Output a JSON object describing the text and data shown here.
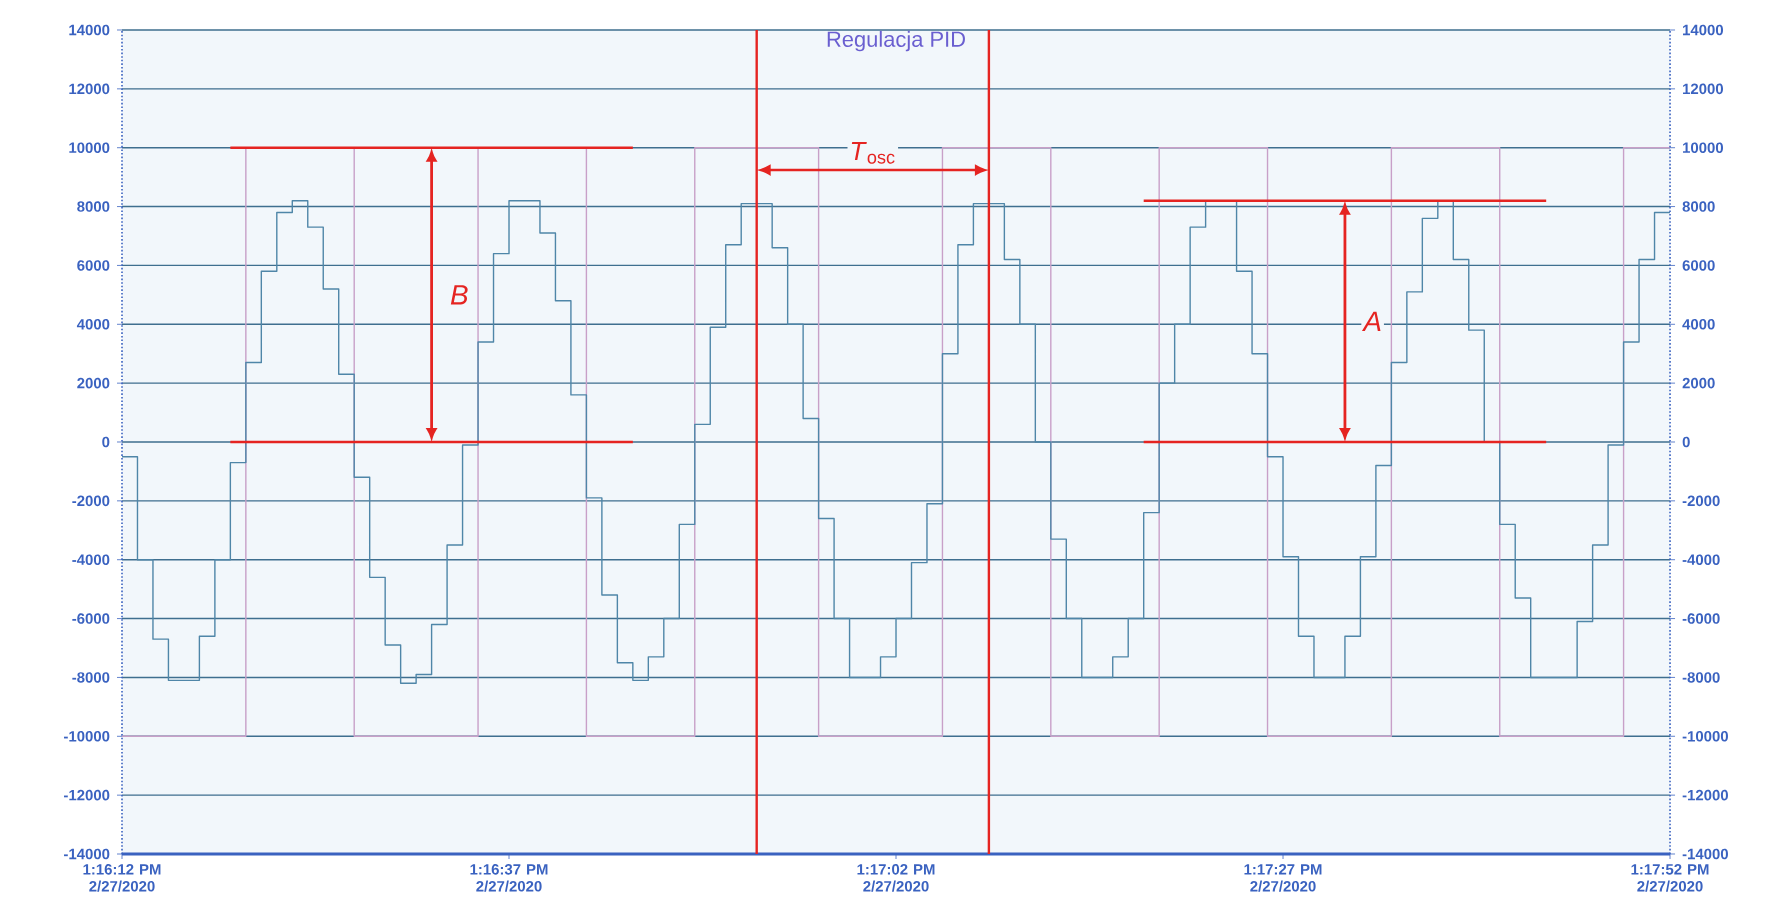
{
  "chart_data": {
    "type": "step",
    "title": "Regulacja PID",
    "xlim": [
      "2020-02-27T13:16:12",
      "2020-02-27T13:17:52"
    ],
    "xticks": [
      {
        "value": "2020-02-27T13:16:12",
        "label": "1:16:12 PM 2/27/2020"
      },
      {
        "value": "2020-02-27T13:16:37",
        "label": "1:16:37 PM 2/27/2020"
      },
      {
        "value": "2020-02-27T13:17:02",
        "label": "1:17:02 PM 2/27/2020"
      },
      {
        "value": "2020-02-27T13:17:27",
        "label": "1:17:27 PM 2/27/2020"
      },
      {
        "value": "2020-02-27T13:17:52",
        "label": "1:17:52 PM 2/27/2020"
      }
    ],
    "ylim": [
      -14000,
      14000
    ],
    "yticks": [
      -14000,
      -12000,
      -10000,
      -8000,
      -6000,
      -4000,
      -2000,
      0,
      2000,
      4000,
      6000,
      8000,
      10000,
      12000,
      14000
    ],
    "y2lim": [
      -14000,
      14000
    ],
    "y2ticks": [
      -14000,
      -12000,
      -10000,
      -8000,
      -6000,
      -4000,
      -2000,
      0,
      2000,
      4000,
      6000,
      8000,
      10000,
      12000,
      14000
    ],
    "grid": "y",
    "series": [
      {
        "color": "#c8a0c8",
        "x": [
          "2020-02-27T13:16:12",
          "2020-02-27T13:16:20",
          "2020-02-27T13:16:27",
          "2020-02-27T13:16:35",
          "2020-02-27T13:16:42",
          "2020-02-27T13:16:49",
          "2020-02-27T13:16:57",
          "2020-02-27T13:17:05",
          "2020-02-27T13:17:12",
          "2020-02-27T13:17:19",
          "2020-02-27T13:17:26",
          "2020-02-27T13:17:34",
          "2020-02-27T13:17:41",
          "2020-02-27T13:17:49",
          "2020-02-27T13:17:52"
        ],
        "values": [
          -10000,
          10000,
          -10000,
          10000,
          -10000,
          10000,
          -10000,
          10000,
          -10000,
          10000,
          -10000,
          10000,
          -10000,
          10000,
          10000
        ]
      },
      {
        "color": "#4f86a8",
        "x": [
          "2020-02-27T13:16:12",
          "2020-02-27T13:16:13",
          "2020-02-27T13:16:14",
          "2020-02-27T13:16:15",
          "2020-02-27T13:16:16",
          "2020-02-27T13:16:17",
          "2020-02-27T13:16:18",
          "2020-02-27T13:16:19",
          "2020-02-27T13:16:20",
          "2020-02-27T13:16:21",
          "2020-02-27T13:16:22",
          "2020-02-27T13:16:23",
          "2020-02-27T13:16:24",
          "2020-02-27T13:16:25",
          "2020-02-27T13:16:26",
          "2020-02-27T13:16:27",
          "2020-02-27T13:16:28",
          "2020-02-27T13:16:29",
          "2020-02-27T13:16:30",
          "2020-02-27T13:16:31",
          "2020-02-27T13:16:32",
          "2020-02-27T13:16:33",
          "2020-02-27T13:16:34",
          "2020-02-27T13:16:35",
          "2020-02-27T13:16:36",
          "2020-02-27T13:16:37",
          "2020-02-27T13:16:38",
          "2020-02-27T13:16:39",
          "2020-02-27T13:16:40",
          "2020-02-27T13:16:41",
          "2020-02-27T13:16:42",
          "2020-02-27T13:16:43",
          "2020-02-27T13:16:44",
          "2020-02-27T13:16:45",
          "2020-02-27T13:16:46",
          "2020-02-27T13:16:47",
          "2020-02-27T13:16:48",
          "2020-02-27T13:16:49",
          "2020-02-27T13:16:50",
          "2020-02-27T13:16:51",
          "2020-02-27T13:16:52",
          "2020-02-27T13:16:53",
          "2020-02-27T13:16:54",
          "2020-02-27T13:16:55",
          "2020-02-27T13:16:56",
          "2020-02-27T13:16:57",
          "2020-02-27T13:16:58",
          "2020-02-27T13:16:59",
          "2020-02-27T13:17:00",
          "2020-02-27T13:17:01",
          "2020-02-27T13:17:02",
          "2020-02-27T13:17:03",
          "2020-02-27T13:17:04",
          "2020-02-27T13:17:05",
          "2020-02-27T13:17:06",
          "2020-02-27T13:17:07",
          "2020-02-27T13:17:08",
          "2020-02-27T13:17:09",
          "2020-02-27T13:17:10",
          "2020-02-27T13:17:11",
          "2020-02-27T13:17:12",
          "2020-02-27T13:17:13",
          "2020-02-27T13:17:14",
          "2020-02-27T13:17:15",
          "2020-02-27T13:17:16",
          "2020-02-27T13:17:17",
          "2020-02-27T13:17:18",
          "2020-02-27T13:17:19",
          "2020-02-27T13:17:20",
          "2020-02-27T13:17:21",
          "2020-02-27T13:17:22",
          "2020-02-27T13:17:23",
          "2020-02-27T13:17:24",
          "2020-02-27T13:17:25",
          "2020-02-27T13:17:26",
          "2020-02-27T13:17:27",
          "2020-02-27T13:17:28",
          "2020-02-27T13:17:29",
          "2020-02-27T13:17:30",
          "2020-02-27T13:17:31",
          "2020-02-27T13:17:32",
          "2020-02-27T13:17:33",
          "2020-02-27T13:17:34",
          "2020-02-27T13:17:35",
          "2020-02-27T13:17:36",
          "2020-02-27T13:17:37",
          "2020-02-27T13:17:38",
          "2020-02-27T13:17:39",
          "2020-02-27T13:17:40",
          "2020-02-27T13:17:41",
          "2020-02-27T13:17:42",
          "2020-02-27T13:17:43",
          "2020-02-27T13:17:44",
          "2020-02-27T13:17:45",
          "2020-02-27T13:17:46",
          "2020-02-27T13:17:47",
          "2020-02-27T13:17:48",
          "2020-02-27T13:17:49",
          "2020-02-27T13:17:50",
          "2020-02-27T13:17:51",
          "2020-02-27T13:17:52"
        ],
        "values": [
          -500,
          -4000,
          -6700,
          -8100,
          -8100,
          -6600,
          -4000,
          -700,
          2700,
          5800,
          7800,
          8200,
          7300,
          5200,
          2300,
          -1200,
          -4600,
          -6900,
          -8200,
          -7900,
          -6200,
          -3500,
          -100,
          3400,
          6400,
          8200,
          8200,
          7100,
          4800,
          1600,
          -1900,
          -5200,
          -7500,
          -8100,
          -7300,
          -6000,
          -2800,
          600,
          3900,
          6700,
          8100,
          8100,
          6600,
          4000,
          800,
          -2600,
          -6000,
          -8000,
          -8000,
          -7300,
          -6000,
          -4100,
          -2100,
          3000,
          6700,
          8100,
          8100,
          6200,
          4000,
          0,
          -3300,
          -6000,
          -8000,
          -8000,
          -7300,
          -6000,
          -2400,
          2000,
          4000,
          7300,
          8200,
          8200,
          5800,
          3000,
          -500,
          -3900,
          -6600,
          -8000,
          -8000,
          -6600,
          -3900,
          -800,
          2700,
          5100,
          7600,
          8200,
          6200,
          3800,
          0,
          -2800,
          -5300,
          -8000,
          -8000,
          -8000,
          -6100,
          -3500,
          -100,
          3400,
          6200,
          7800,
          7800
        ]
      },
      {
        "type": "line",
        "color": "#e52421",
        "x": [
          "2020-02-27T13:16:19",
          "2020-02-27T13:16:45"
        ],
        "values": [
          10000,
          10000
        ]
      },
      {
        "type": "line",
        "color": "#e52421",
        "x": [
          "2020-02-27T13:16:19",
          "2020-02-27T13:16:45"
        ],
        "values": [
          0,
          0
        ]
      },
      {
        "type": "line",
        "color": "#e52421",
        "x": [
          "2020-02-27T13:17:18",
          "2020-02-27T13:17:44"
        ],
        "values": [
          8200,
          8200
        ]
      },
      {
        "type": "line",
        "color": "#e52421",
        "x": [
          "2020-02-27T13:17:18",
          "2020-02-27T13:17:44"
        ],
        "values": [
          0,
          0
        ]
      }
    ],
    "ref_lines": [
      {
        "axis": "x",
        "value": "2020-02-27T13:16:53",
        "color": "#e52421"
      },
      {
        "axis": "x",
        "value": "2020-02-27T13:17:08",
        "color": "#e52421"
      }
    ],
    "annotations": [
      "*T*$_{osc}$",
      "B",
      "A"
    ]
  }
}
